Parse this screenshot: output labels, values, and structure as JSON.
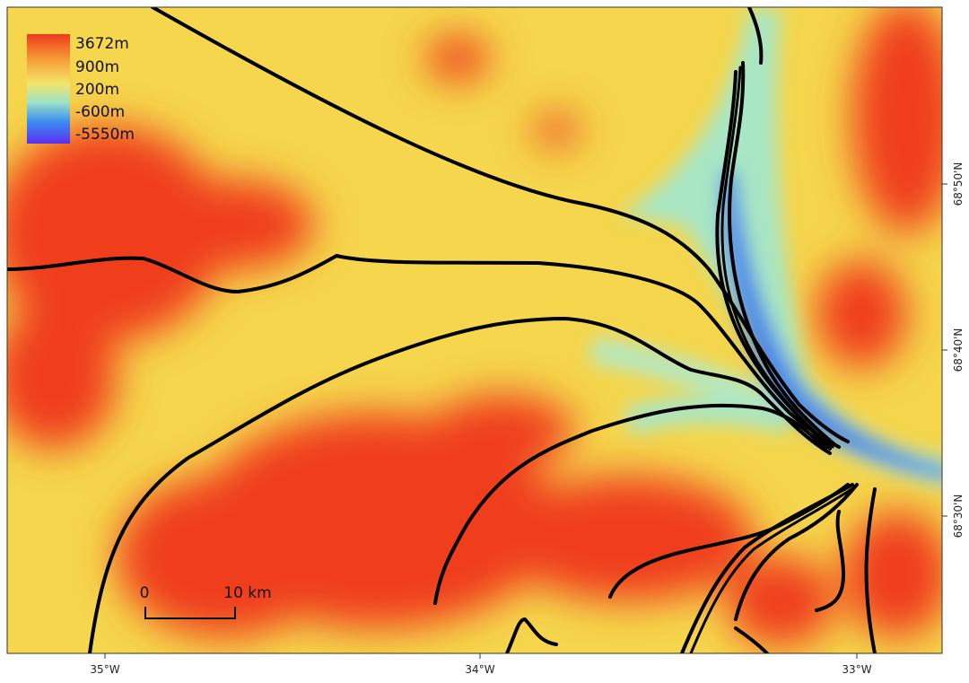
{
  "legend": {
    "items": [
      {
        "label": "3672m"
      },
      {
        "label": "900m"
      },
      {
        "label": "200m"
      },
      {
        "label": "-600m"
      },
      {
        "label": "-5550m"
      }
    ]
  },
  "scale_bar": {
    "start": "0",
    "end": "10 km"
  },
  "x_axis": {
    "ticks": [
      "35°W",
      "34°W",
      "33°W"
    ]
  },
  "y_axis": {
    "ticks": [
      "68°50'N",
      "68°40'N",
      "68°30'N"
    ]
  }
}
